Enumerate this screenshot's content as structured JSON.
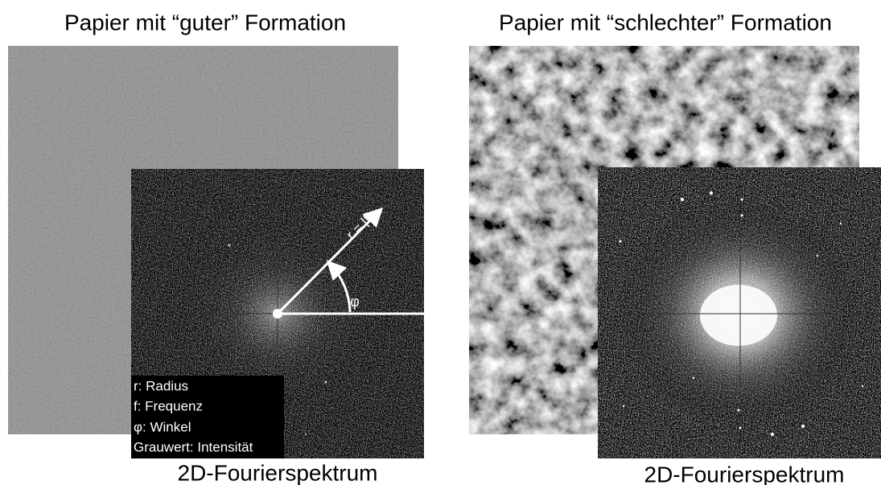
{
  "left": {
    "title": "Papier mit “guter” Formation",
    "spectrum": {
      "radius_label": "r = |f|",
      "angle_label": "φ"
    },
    "legend": [
      "r: Radius",
      "f: Frequenz",
      "φ: Winkel",
      "Grauwert: Intensität"
    ],
    "caption": "2D-Fourierspektrum"
  },
  "right": {
    "title": "Papier mit “schlechter” Formation",
    "caption": "2D-Fourierspektrum"
  }
}
